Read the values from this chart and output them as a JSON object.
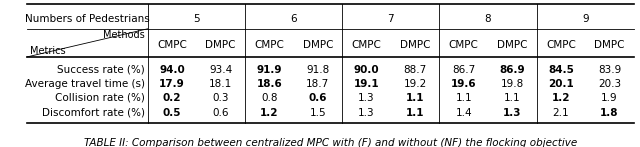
{
  "title_caption": "TABLE II: Comparison between centralized MPC with (F) and without (NF) the flocking objective",
  "header_row1_label": "Numbers of Pedestrians",
  "ped_numbers": [
    "5",
    "6",
    "7",
    "8",
    "9"
  ],
  "methods": [
    "CMPC",
    "DMPC"
  ],
  "metrics": [
    "Success rate (%)",
    "Average travel time (s)",
    "Collision rate (%)",
    "Discomfort rate (%)"
  ],
  "data": {
    "5": {
      "CMPC": [
        "94.0",
        "17.9",
        "0.2",
        "0.5"
      ],
      "DMPC": [
        "93.4",
        "18.1",
        "0.3",
        "0.6"
      ]
    },
    "6": {
      "CMPC": [
        "91.9",
        "18.6",
        "0.8",
        "1.2"
      ],
      "DMPC": [
        "91.8",
        "18.7",
        "0.6",
        "1.5"
      ]
    },
    "7": {
      "CMPC": [
        "90.0",
        "19.1",
        "1.3",
        "1.3"
      ],
      "DMPC": [
        "88.7",
        "19.2",
        "1.1",
        "1.1"
      ]
    },
    "8": {
      "CMPC": [
        "86.7",
        "19.6",
        "1.1",
        "1.4"
      ],
      "DMPC": [
        "86.9",
        "19.8",
        "1.1",
        "1.3"
      ]
    },
    "9": {
      "CMPC": [
        "84.5",
        "20.1",
        "1.2",
        "2.1"
      ],
      "DMPC": [
        "83.9",
        "20.3",
        "1.9",
        "1.8"
      ]
    }
  },
  "bold": {
    "5": {
      "CMPC": [
        true,
        true,
        true,
        true
      ],
      "DMPC": [
        false,
        false,
        false,
        false
      ]
    },
    "6": {
      "CMPC": [
        true,
        true,
        false,
        true
      ],
      "DMPC": [
        false,
        false,
        true,
        false
      ]
    },
    "7": {
      "CMPC": [
        true,
        true,
        false,
        false
      ],
      "DMPC": [
        false,
        false,
        true,
        true
      ]
    },
    "8": {
      "CMPC": [
        false,
        true,
        false,
        false
      ],
      "DMPC": [
        true,
        false,
        false,
        true
      ]
    },
    "9": {
      "CMPC": [
        true,
        true,
        true,
        false
      ],
      "DMPC": [
        false,
        false,
        false,
        true
      ]
    }
  },
  "bg_color": "#ffffff",
  "text_color": "#000000",
  "font_size": 7.5,
  "caption_font_size": 7.5
}
